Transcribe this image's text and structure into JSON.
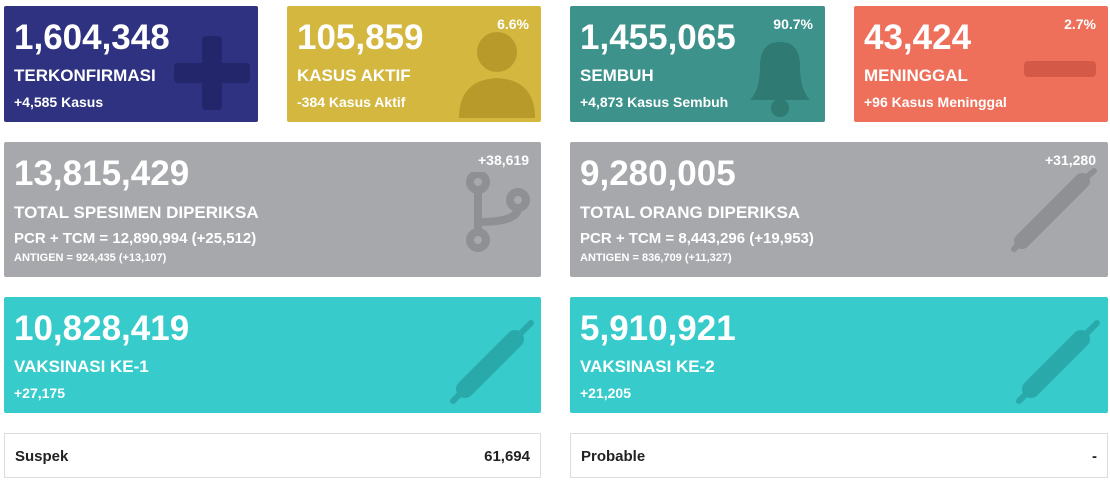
{
  "summary_cards": [
    {
      "value": "1,604,348",
      "label": "TERKONFIRMASI",
      "detail": "+4,585 Kasus"
    },
    {
      "value": "105,859",
      "label": "KASUS AKTIF",
      "detail": "-384 Kasus Aktif",
      "percent": "6.6%"
    },
    {
      "value": "1,455,065",
      "label": "SEMBUH",
      "detail": "+4,873 Kasus Sembuh",
      "percent": "90.7%"
    },
    {
      "value": "43,424",
      "label": "MENINGGAL",
      "detail": "+96 Kasus Meninggal",
      "percent": "2.7%"
    }
  ],
  "test_cards": [
    {
      "value": "13,815,429",
      "label": "TOTAL SPESIMEN DIPERIKSA",
      "change": "+38,619",
      "pcr": "PCR + TCM = 12,890,994 (+25,512)",
      "antigen": "ANTIGEN = 924,435 (+13,107)"
    },
    {
      "value": "9,280,005",
      "label": "TOTAL ORANG DIPERIKSA",
      "change": "+31,280",
      "pcr": "PCR + TCM = 8,443,296 (+19,953)",
      "antigen": "ANTIGEN = 836,709 (+11,327)"
    }
  ],
  "vaccine_cards": [
    {
      "value": "10,828,419",
      "label": "VAKSINASI KE-1",
      "detail": "+27,175"
    },
    {
      "value": "5,910,921",
      "label": "VAKSINASI KE-2",
      "detail": "+21,205"
    }
  ],
  "info_rows": [
    {
      "label": "Suspek",
      "value": "61,694"
    },
    {
      "label": "Probable",
      "value": "-"
    }
  ]
}
